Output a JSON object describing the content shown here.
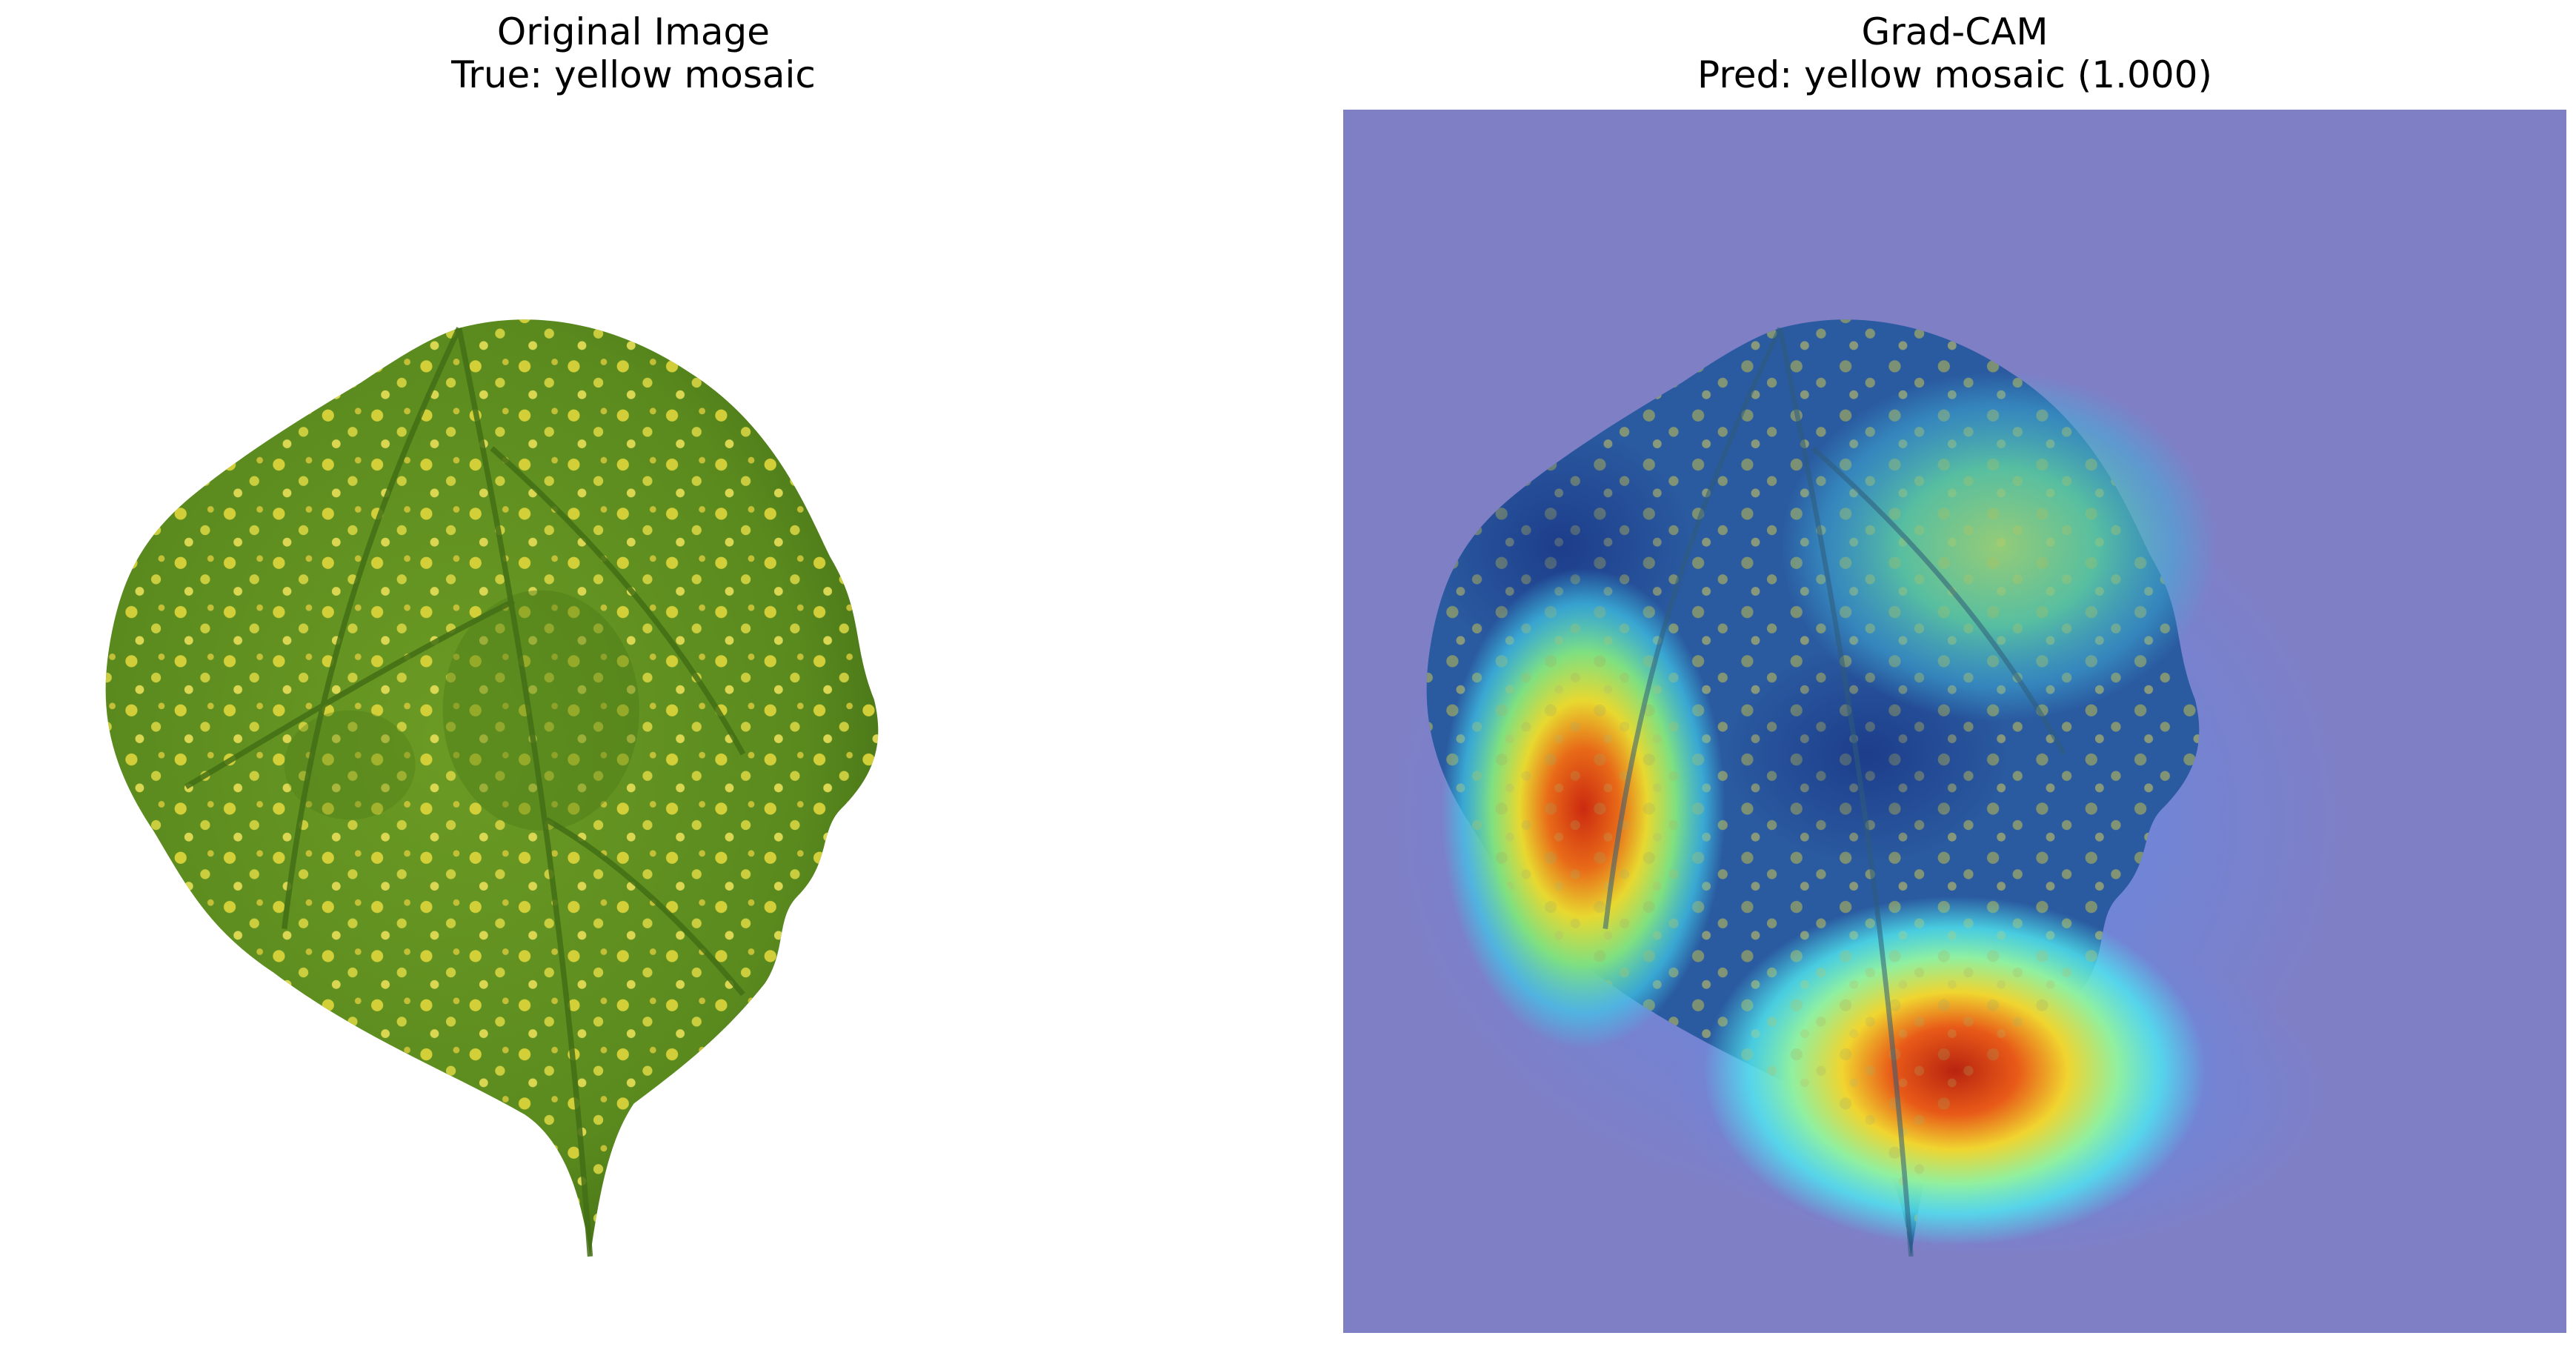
{
  "panels": [
    {
      "title_line1": "Original Image",
      "title_line2": "True: yellow mosaic",
      "image": "leaf-photo"
    },
    {
      "title_line1": "Grad-CAM",
      "title_line2": "Pred: yellow mosaic (1.000)",
      "image": "gradcam-heatmap-overlay"
    }
  ],
  "colors": {
    "leaf_green": "#5e8a1e",
    "leaf_dark": "#3f6a14",
    "mosaic_yellow": "#d8d23a",
    "heatmap_background": "#7f7fc6",
    "heatmap_hot": "#d9301a"
  }
}
